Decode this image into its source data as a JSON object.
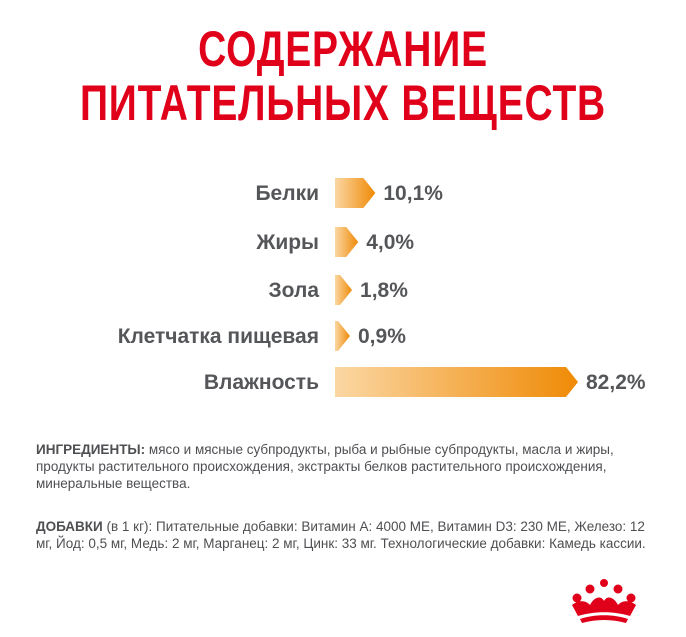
{
  "title": {
    "line1": "СОДЕРЖАНИЕ",
    "line2": "ПИТАТЕЛЬНЫХ ВЕЩЕСТВ"
  },
  "chart_data": {
    "type": "bar",
    "orientation": "horizontal",
    "categories": [
      "Белки",
      "Жиры",
      "Зола",
      "Клетчатка пищевая",
      "Влажность"
    ],
    "values": [
      10.1,
      4.0,
      1.8,
      0.9,
      82.2
    ],
    "value_labels": [
      "10,1%",
      "4,0%",
      "1,8%",
      "0,9%",
      "82,2%"
    ],
    "unit": "%",
    "grid": false,
    "legend": "none",
    "colors": {
      "bar_start": "#fbd7a3",
      "bar_end": "#ef8a06",
      "label": "#555659"
    }
  },
  "ingredients": {
    "label": "ИНГРЕДИЕНТЫ:",
    "text": " мясо и мясные субпродукты, рыба и рыбные субпродукты, масла и жиры, продукты растительного происхождения, экстракты белков растительного происхождения, минеральные вещества."
  },
  "additives": {
    "label": "ДОБАВКИ",
    "text": " (в 1 кг): Питательные добавки: Витамин А: 4000 МЕ, Витамин D3: 230 МЕ, Железо: 12 мг, Йод: 0,5 мг, Медь: 2 мг, Марганец: 2 мг, Цинк: 33 мг. Технологические добавки: Камедь кассии."
  },
  "brand": {
    "logo_icon": "royal-crown-icon",
    "color": "#e1001a"
  }
}
